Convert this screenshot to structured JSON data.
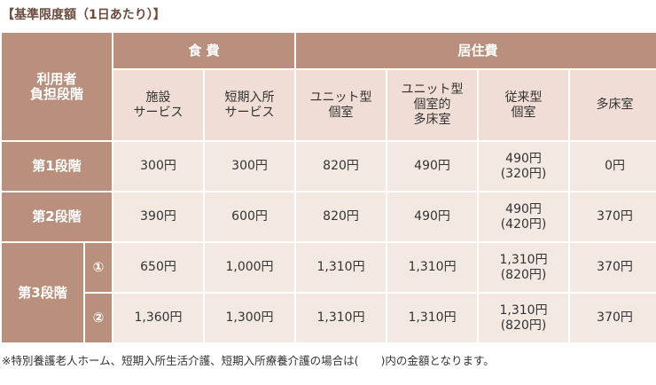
{
  "title": "【基準限度額（1日あたり）】",
  "header": {
    "row_label": "利用者\n負担段階",
    "food": "食 費",
    "residence": "居住費",
    "sub": [
      "施設\nサービス",
      "短期入所\nサービス",
      "ユニット型\n個室",
      "ユニット型\n個室的\n多床室",
      "従来型\n個室",
      "多床室"
    ]
  },
  "rows": [
    {
      "label": "第1段階",
      "values": [
        "300円",
        "300円",
        "820円",
        "490円",
        "490円\n(320円)",
        "0円"
      ]
    },
    {
      "label": "第2段階",
      "values": [
        "390円",
        "600円",
        "820円",
        "490円",
        "490円\n(420円)",
        "370円"
      ]
    }
  ],
  "stage3": {
    "label": "第3段階",
    "subrows": [
      {
        "mark": "①",
        "values": [
          "650円",
          "1,000円",
          "1,310円",
          "1,310円",
          "1,310円\n(820円)",
          "370円"
        ]
      },
      {
        "mark": "②",
        "values": [
          "1,360円",
          "1,300円",
          "1,310円",
          "1,310円",
          "1,310円\n(820円)",
          "370円"
        ]
      }
    ]
  },
  "note": "※特別養護老人ホーム、短期入所生活介護、短期入所療養介護の場合は(　　)内の金額となります。"
}
